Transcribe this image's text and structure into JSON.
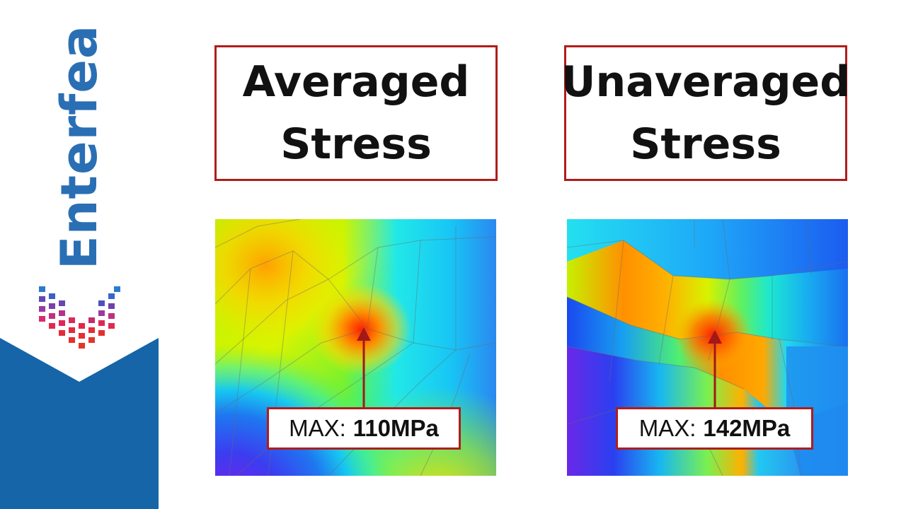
{
  "brand": {
    "name": "Enterfea",
    "color": "#2a6fb4",
    "accent": "#1565a8"
  },
  "panels": [
    {
      "title_line1": "Averaged",
      "title_line2": "Stress",
      "max_prefix": "MAX:",
      "max_value": "110MPa"
    },
    {
      "title_line1": "Unaveraged",
      "title_line2": "Stress",
      "max_prefix": "MAX:",
      "max_value": "142MPa"
    }
  ],
  "colors": {
    "frame": "#b01c1c",
    "arrow": "#a31818"
  }
}
